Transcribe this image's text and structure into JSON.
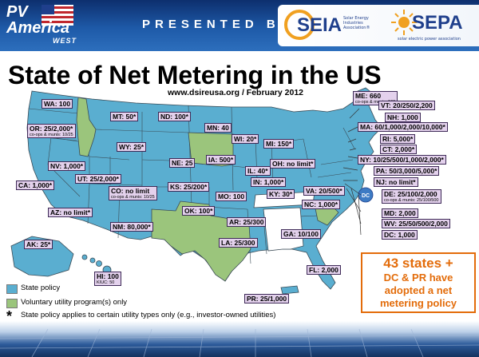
{
  "header": {
    "pv_line1": "PV",
    "pv_line2": "America",
    "pv_line3": "WEST",
    "presented_by": "PRESENTED BY:",
    "seia": "SEIA",
    "seia_sub": "Solar Energy Industries Association®",
    "sepa": "SEPA",
    "sepa_sub": "solar electric power association"
  },
  "title": "State of Net Metering in the US",
  "source": "www.dsireusa.org / February 2012",
  "colors": {
    "state_policy": "#5aaed0",
    "voluntary": "#9bc57c",
    "label_bg": "#e3d1ec",
    "callout": "#e36c0a",
    "banner": "#1e5aa8"
  },
  "map": {
    "labels": [
      {
        "key": "wa",
        "text": "WA: 100"
      },
      {
        "key": "or",
        "text": "OR: 25/2,000*",
        "sub": "co-ops & munis: 10/25"
      },
      {
        "key": "mt",
        "text": "MT: 50*"
      },
      {
        "key": "nd",
        "text": "ND: 100*"
      },
      {
        "key": "mn",
        "text": "MN: 40"
      },
      {
        "key": "wy",
        "text": "WY: 25*"
      },
      {
        "key": "wi",
        "text": "WI: 20*"
      },
      {
        "key": "mi",
        "text": "MI: 150*"
      },
      {
        "key": "nv",
        "text": "NV: 1,000*"
      },
      {
        "key": "ut",
        "text": "UT: 25/2,000*"
      },
      {
        "key": "ne",
        "text": "NE: 25"
      },
      {
        "key": "ia",
        "text": "IA: 500*"
      },
      {
        "key": "il",
        "text": "IL: 40*"
      },
      {
        "key": "oh",
        "text": "OH: no limit*"
      },
      {
        "key": "ca",
        "text": "CA: 1,000*"
      },
      {
        "key": "co",
        "text": "CO: no limit",
        "sub": "co-ops & munis: 10/25"
      },
      {
        "key": "ks",
        "text": "KS: 25/200*"
      },
      {
        "key": "in",
        "text": "IN: 1,000*"
      },
      {
        "key": "mo",
        "text": "MO: 100"
      },
      {
        "key": "ky",
        "text": "KY: 30*"
      },
      {
        "key": "va",
        "text": "VA: 20/500*"
      },
      {
        "key": "az",
        "text": "AZ: no limit*"
      },
      {
        "key": "nc",
        "text": "NC: 1,000*"
      },
      {
        "key": "ok",
        "text": "OK: 100*"
      },
      {
        "key": "nm",
        "text": "NM: 80,000*"
      },
      {
        "key": "ar",
        "text": "AR: 25/300"
      },
      {
        "key": "la",
        "text": "LA: 25/300"
      },
      {
        "key": "ga",
        "text": "GA: 10/100"
      },
      {
        "key": "ak",
        "text": "AK: 25*"
      },
      {
        "key": "hi",
        "text": "HI: 100",
        "sub": "KIUC: 50"
      },
      {
        "key": "fl",
        "text": "FL: 2,000"
      },
      {
        "key": "pr",
        "text": "PR: 25/1,000"
      },
      {
        "key": "me",
        "text": "ME: 660",
        "sub": "co-ops & munis: 100"
      },
      {
        "key": "vt",
        "text": "VT: 20/250/2,200"
      },
      {
        "key": "nh",
        "text": "NH: 1,000"
      },
      {
        "key": "ma",
        "text": "MA: 60/1,000/2,000/10,000*"
      },
      {
        "key": "ri",
        "text": "RI: 5,000*"
      },
      {
        "key": "ct",
        "text": "CT: 2,000*"
      },
      {
        "key": "ny",
        "text": "NY: 10/25/500/1,000/2,000*"
      },
      {
        "key": "pa",
        "text": "PA: 50/3,000/5,000*"
      },
      {
        "key": "nj",
        "text": "NJ: no limit*"
      },
      {
        "key": "de",
        "text": "DE: 25/100/2,000",
        "sub": "co-ops & munis: 25/100/500"
      },
      {
        "key": "md",
        "text": "MD: 2,000"
      },
      {
        "key": "wv",
        "text": "WV: 25/50/500/2,000"
      },
      {
        "key": "dc",
        "text": "DC: 1,000"
      }
    ],
    "dc_marker": "DC"
  },
  "callout": {
    "line1": "43 states +",
    "line2": "DC & PR have",
    "line3": "adopted a net",
    "line4": "metering policy"
  },
  "legend": {
    "state_policy": "State policy",
    "voluntary": "Voluntary utility program(s) only",
    "asterisk_mark": "*",
    "asterisk_note": "State policy applies to certain utility types only (e.g., investor-owned utilities)"
  }
}
